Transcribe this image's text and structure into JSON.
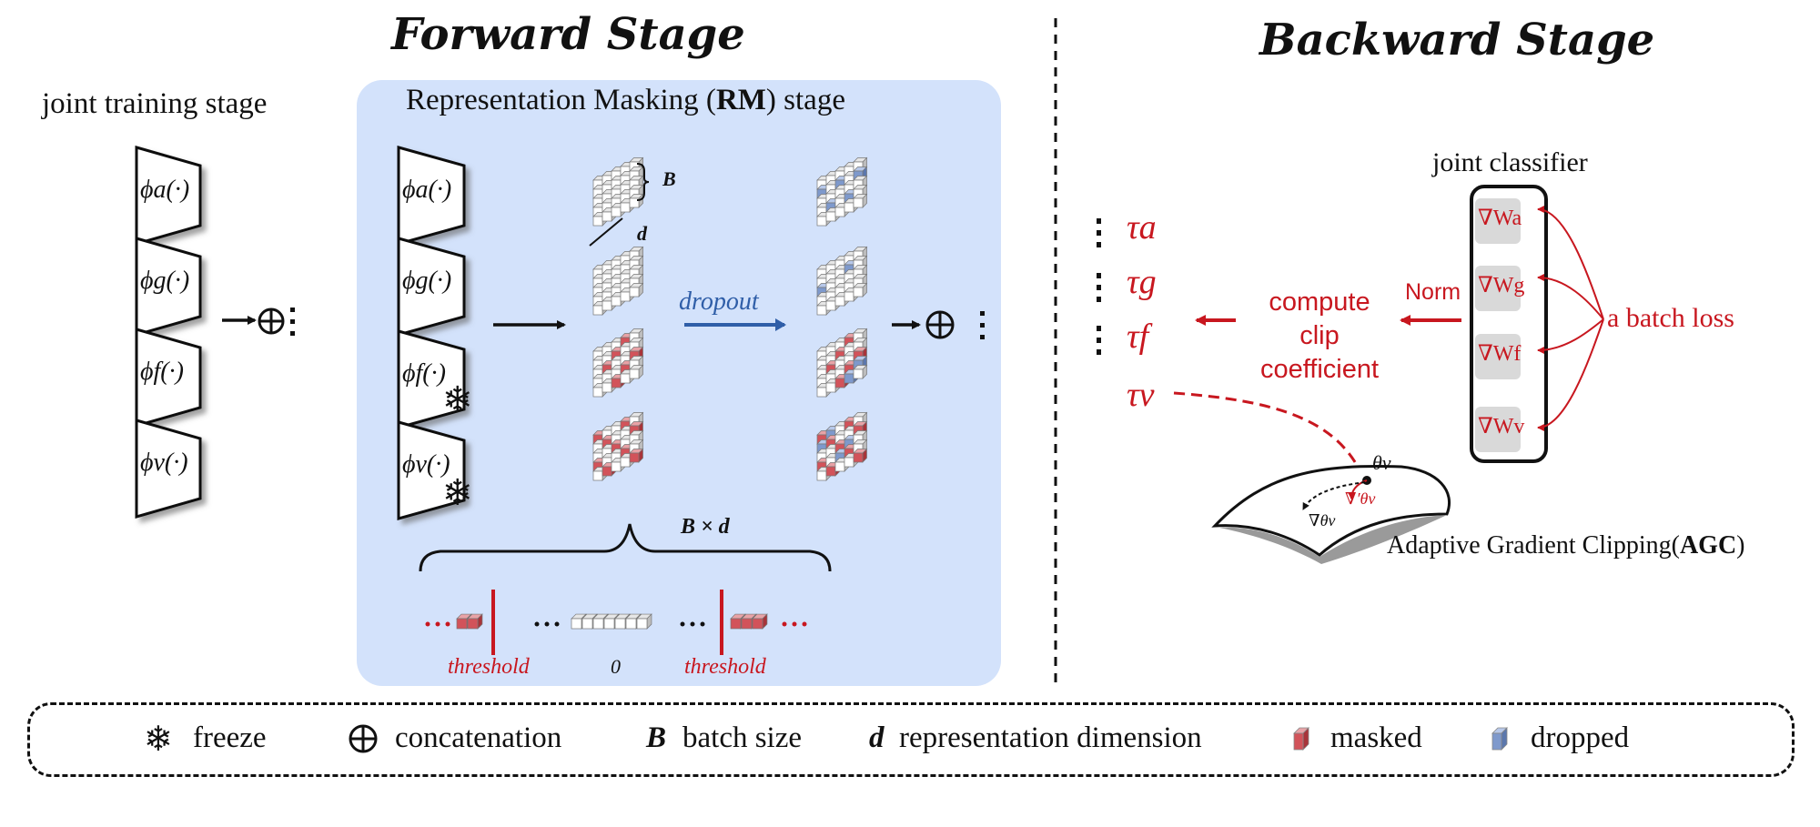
{
  "forward": {
    "title": "Forward Stage",
    "joint_training_label": "joint training stage",
    "rm_label_prefix": "Representation Masking (",
    "rm_label_bold": "RM",
    "rm_label_suffix": ") stage",
    "encoders": [
      "ϕa(·)",
      "ϕg(·)",
      "ϕf(·)",
      "ϕv(·)"
    ],
    "b_label": "B",
    "d_label": "d",
    "dropout_label": "dropout",
    "bxd_label": "B × d",
    "threshold_left": "threshold",
    "zero_label": "0",
    "threshold_right": "threshold"
  },
  "backward": {
    "title": "Backward Stage",
    "joint_classifier_label": "joint classifier",
    "gradients": [
      "∇Wa",
      "∇Wg",
      "∇Wf",
      "∇Wv"
    ],
    "batch_loss_label": "a batch loss",
    "norm_label": "Norm",
    "compute_lines": [
      "compute",
      "clip",
      "coefficient"
    ],
    "taus": [
      "τa",
      "τg",
      "τf",
      "τv"
    ],
    "theta_label": "θv",
    "grad_clipped_label": "∇′θv",
    "grad_label": "∇θv",
    "agc_prefix": "Adaptive Gradient Clipping(",
    "agc_bold": "AGC",
    "agc_suffix": ")"
  },
  "legend": {
    "freeze": "freeze",
    "concatenation": "concatenation",
    "b_symbol": "B",
    "batch_size": "batch size",
    "d_symbol": "d",
    "representation_dimension": "representation dimension",
    "masked": "masked",
    "dropped": "dropped"
  },
  "colors": {
    "panel_bg": "#d3e2fb",
    "accent_red": "#c8171f",
    "dropout_blue": "#2f5ea8",
    "masked_cell": "#d2535a",
    "dropped_cell": "#7e99cc"
  }
}
